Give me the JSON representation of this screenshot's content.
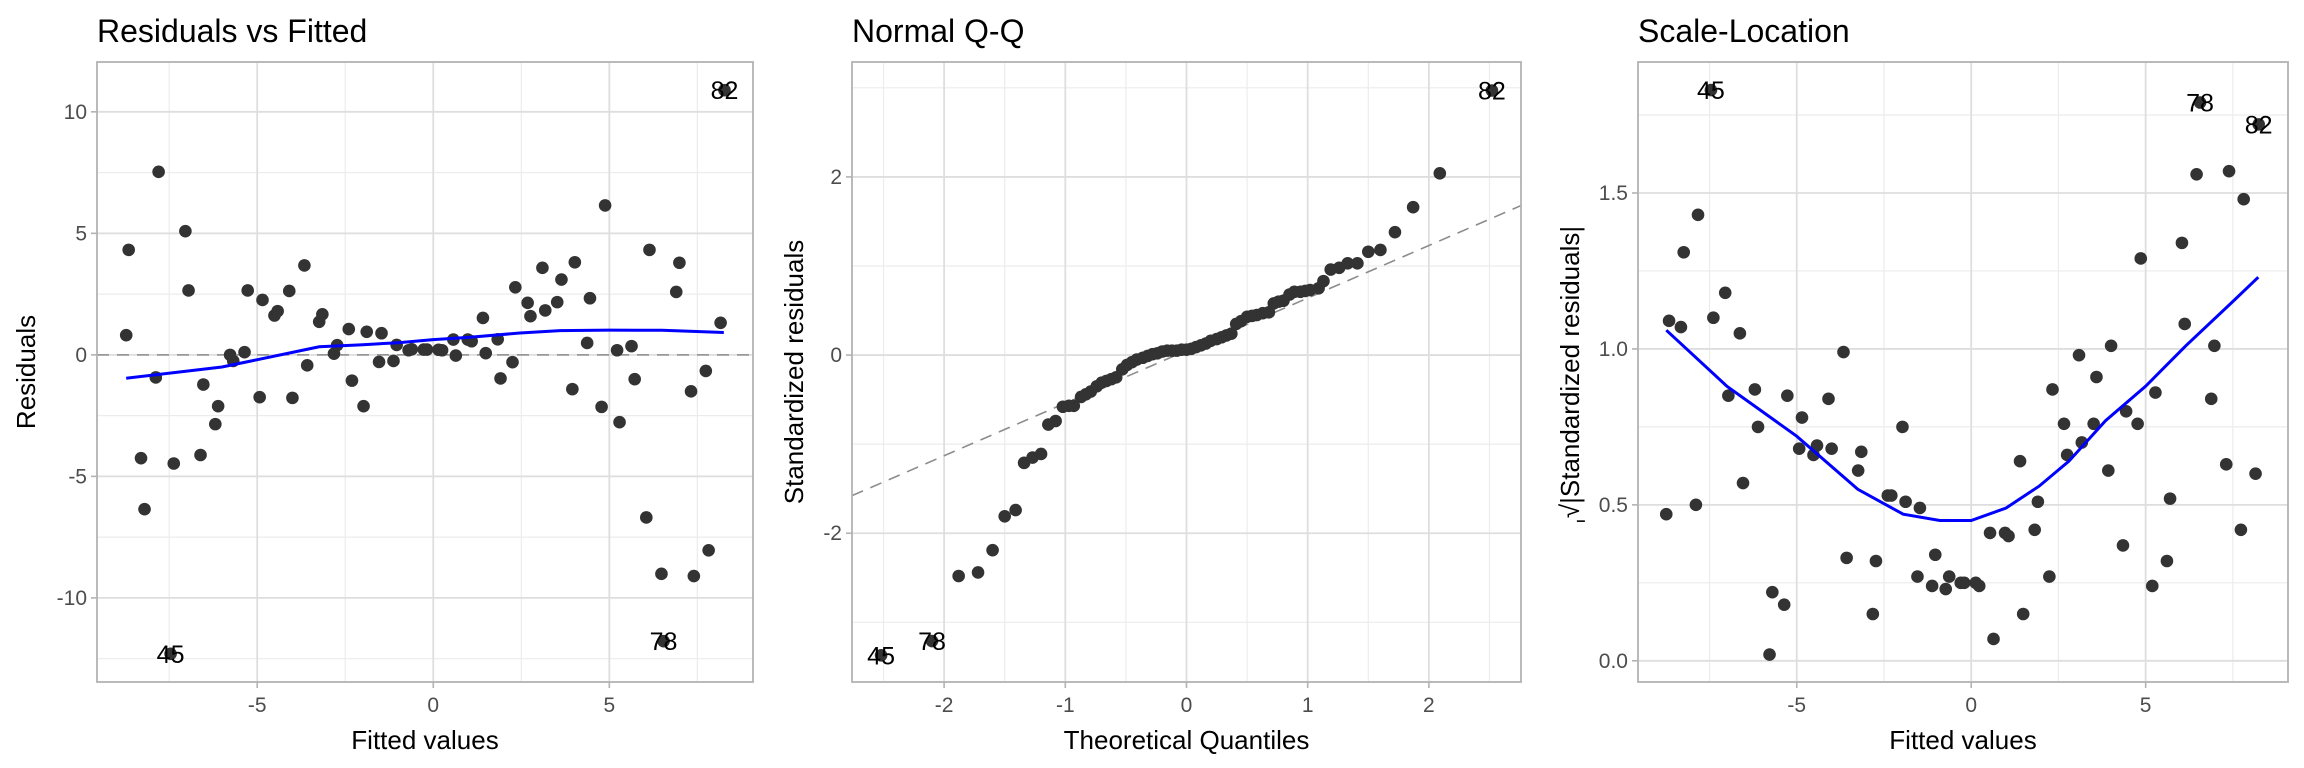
{
  "colors": {
    "point": "#333333",
    "smooth": "#0000ff",
    "reference": "#8c8c8c",
    "grid_major": "#dedede",
    "grid_minor": "#ececec",
    "border": "#b3b3b3"
  },
  "chart_data": [
    {
      "type": "scatter",
      "title": "Residuals vs Fitted",
      "xlabel": "Fitted values",
      "ylabel": "Residuals",
      "xlim": [
        -9.55,
        9.08
      ],
      "ylim": [
        -13.46,
        12.05
      ],
      "xticks": [
        -5,
        0,
        5
      ],
      "yticks": [
        -10,
        -5,
        0,
        5,
        10
      ],
      "xtick_labels": [
        "-5",
        "0",
        "5"
      ],
      "ytick_labels": [
        "-10",
        "-5",
        "0",
        "5",
        "10"
      ],
      "grid": true,
      "hline": 0,
      "points": [
        [
          -8.72,
          0.81
        ],
        [
          -8.65,
          4.32
        ],
        [
          -7.8,
          7.53
        ],
        [
          -7.04,
          5.09
        ],
        [
          -6.95,
          2.65
        ],
        [
          -7.88,
          -0.93
        ],
        [
          -6.53,
          -1.22
        ],
        [
          -6.11,
          -2.11
        ],
        [
          -6.19,
          -2.85
        ],
        [
          -8.3,
          -4.25
        ],
        [
          -7.37,
          -4.47
        ],
        [
          -6.61,
          -4.12
        ],
        [
          -8.2,
          -6.35
        ],
        [
          -5.77,
          0.0
        ],
        [
          -5.68,
          -0.25
        ],
        [
          -5.36,
          0.11
        ],
        [
          -5.27,
          2.65
        ],
        [
          -4.85,
          2.26
        ],
        [
          -4.93,
          -1.74
        ],
        [
          -4.51,
          1.62
        ],
        [
          -4.42,
          1.8
        ],
        [
          -4.09,
          2.63
        ],
        [
          -4.0,
          -1.77
        ],
        [
          -3.66,
          3.68
        ],
        [
          -3.58,
          -0.43
        ],
        [
          -3.24,
          1.36
        ],
        [
          -3.15,
          1.67
        ],
        [
          -2.82,
          0.05
        ],
        [
          -2.73,
          0.4
        ],
        [
          -2.4,
          1.06
        ],
        [
          -2.31,
          -1.06
        ],
        [
          -1.98,
          -2.11
        ],
        [
          -1.89,
          0.95
        ],
        [
          -1.54,
          -0.29
        ],
        [
          -1.47,
          0.89
        ],
        [
          -1.13,
          -0.25
        ],
        [
          -1.04,
          0.41
        ],
        [
          -0.7,
          0.19
        ],
        [
          -0.61,
          0.23
        ],
        [
          -0.27,
          0.22
        ],
        [
          -0.18,
          0.22
        ],
        [
          0.15,
          0.21
        ],
        [
          0.25,
          0.19
        ],
        [
          0.57,
          0.63
        ],
        [
          0.64,
          -0.03
        ],
        [
          0.98,
          0.63
        ],
        [
          1.09,
          0.56
        ],
        [
          1.41,
          1.52
        ],
        [
          1.49,
          0.07
        ],
        [
          1.83,
          0.64
        ],
        [
          1.91,
          -0.97
        ],
        [
          2.25,
          -0.3
        ],
        [
          2.33,
          2.78
        ],
        [
          2.68,
          2.14
        ],
        [
          2.76,
          1.59
        ],
        [
          3.1,
          3.58
        ],
        [
          3.18,
          1.83
        ],
        [
          3.52,
          2.17
        ],
        [
          3.64,
          3.1
        ],
        [
          3.95,
          -1.41
        ],
        [
          4.02,
          3.81
        ],
        [
          4.37,
          0.49
        ],
        [
          4.45,
          2.33
        ],
        [
          4.78,
          -2.14
        ],
        [
          4.88,
          6.15
        ],
        [
          5.22,
          0.19
        ],
        [
          5.29,
          -2.77
        ],
        [
          5.63,
          0.36
        ],
        [
          5.72,
          -1.0
        ],
        [
          6.05,
          -6.69
        ],
        [
          6.14,
          4.32
        ],
        [
          6.48,
          -9.01
        ],
        [
          6.9,
          2.59
        ],
        [
          6.99,
          3.79
        ],
        [
          7.32,
          -1.5
        ],
        [
          7.4,
          -9.1
        ],
        [
          7.74,
          -0.66
        ],
        [
          7.82,
          -8.04
        ],
        [
          8.16,
          1.32
        ],
        [
          -7.46,
          -12.3
        ],
        [
          6.54,
          -11.78
        ],
        [
          8.27,
          10.89
        ]
      ],
      "labeled_points": [
        {
          "label": "45",
          "x": -7.46,
          "y": -12.3
        },
        {
          "label": "78",
          "x": 6.54,
          "y": -11.78
        },
        {
          "label": "82",
          "x": 8.27,
          "y": 10.89
        }
      ],
      "smooth": [
        [
          -8.72,
          -0.96
        ],
        [
          -6,
          -0.5
        ],
        [
          -4,
          0.1
        ],
        [
          -3.24,
          0.33
        ],
        [
          -2,
          0.42
        ],
        [
          -1,
          0.5
        ],
        [
          0,
          0.63
        ],
        [
          1,
          0.72
        ],
        [
          2.46,
          0.9
        ],
        [
          3.6,
          1.0
        ],
        [
          5,
          1.02
        ],
        [
          6.5,
          1.01
        ],
        [
          8.25,
          0.92
        ]
      ]
    },
    {
      "type": "scatter",
      "title": "Normal Q-Q",
      "xlabel": "Theoretical Quantiles",
      "ylabel": "Standardized residuals",
      "xlim": [
        -2.76,
        2.76
      ],
      "ylim": [
        -3.67,
        3.29
      ],
      "xticks": [
        -2,
        -1,
        0,
        1,
        2
      ],
      "yticks": [
        -2,
        0,
        2
      ],
      "xtick_labels": [
        "-2",
        "-1",
        "0",
        "1",
        "2"
      ],
      "ytick_labels": [
        "-2",
        "0",
        "2"
      ],
      "grid": true,
      "reference_line": {
        "intercept": 0.05,
        "slope": 0.59
      },
      "points": [
        [
          -2.52,
          -3.37
        ],
        [
          -2.1,
          -3.21
        ],
        [
          -1.88,
          -2.48
        ],
        [
          -1.72,
          -2.44
        ],
        [
          -1.6,
          -2.19
        ],
        [
          -1.5,
          -1.81
        ],
        [
          -1.41,
          -1.74
        ],
        [
          -1.34,
          -1.21
        ],
        [
          -1.27,
          -1.15
        ],
        [
          -1.2,
          -1.11
        ],
        [
          -1.14,
          -0.78
        ],
        [
          -1.08,
          -0.74
        ],
        [
          -1.02,
          -0.58
        ],
        [
          -0.97,
          -0.57
        ],
        [
          -0.93,
          -0.57
        ],
        [
          -0.87,
          -0.47
        ],
        [
          -0.83,
          -0.44
        ],
        [
          -0.79,
          -0.41
        ],
        [
          -0.74,
          -0.35
        ],
        [
          -0.7,
          -0.31
        ],
        [
          -0.66,
          -0.29
        ],
        [
          -0.62,
          -0.27
        ],
        [
          -0.58,
          -0.25
        ],
        [
          -0.53,
          -0.16
        ],
        [
          -0.49,
          -0.11
        ],
        [
          -0.45,
          -0.08
        ],
        [
          -0.41,
          -0.05
        ],
        [
          -0.36,
          -0.03
        ],
        [
          -0.32,
          -0.01
        ],
        [
          -0.28,
          0.01
        ],
        [
          -0.24,
          0.02
        ],
        [
          -0.2,
          0.04
        ],
        [
          -0.16,
          0.05
        ],
        [
          -0.12,
          0.05
        ],
        [
          -0.08,
          0.05
        ],
        [
          -0.04,
          0.06
        ],
        [
          0.0,
          0.06
        ],
        [
          0.04,
          0.07
        ],
        [
          0.08,
          0.09
        ],
        [
          0.12,
          0.11
        ],
        [
          0.16,
          0.13
        ],
        [
          0.2,
          0.16
        ],
        [
          0.25,
          0.18
        ],
        [
          0.29,
          0.2
        ],
        [
          0.33,
          0.22
        ],
        [
          0.37,
          0.24
        ],
        [
          0.41,
          0.35
        ],
        [
          0.45,
          0.38
        ],
        [
          0.5,
          0.43
        ],
        [
          0.54,
          0.44
        ],
        [
          0.58,
          0.45
        ],
        [
          0.63,
          0.47
        ],
        [
          0.68,
          0.48
        ],
        [
          0.72,
          0.58
        ],
        [
          0.76,
          0.6
        ],
        [
          0.8,
          0.61
        ],
        [
          0.85,
          0.68
        ],
        [
          0.89,
          0.71
        ],
        [
          0.94,
          0.71
        ],
        [
          0.98,
          0.72
        ],
        [
          1.02,
          0.73
        ],
        [
          1.09,
          0.75
        ],
        [
          1.13,
          0.83
        ],
        [
          1.19,
          0.96
        ],
        [
          1.26,
          0.98
        ],
        [
          1.33,
          1.03
        ],
        [
          1.41,
          1.03
        ],
        [
          1.5,
          1.16
        ],
        [
          1.6,
          1.18
        ],
        [
          1.72,
          1.38
        ],
        [
          1.87,
          1.66
        ],
        [
          2.09,
          2.04
        ],
        [
          2.52,
          2.97
        ]
      ],
      "labeled_points": [
        {
          "label": "45",
          "x": -2.52,
          "y": -3.37
        },
        {
          "label": "78",
          "x": -2.1,
          "y": -3.21
        },
        {
          "label": "82",
          "x": 2.52,
          "y": 2.97
        }
      ]
    },
    {
      "type": "scatter",
      "title": "Scale-Location",
      "xlabel": "Fitted values",
      "ylabel": "√|Standardized residuals|",
      "xlim": [
        -9.55,
        9.08
      ],
      "ylim": [
        -0.068,
        1.92
      ],
      "xticks": [
        -5,
        0,
        5
      ],
      "yticks": [
        0,
        0.5,
        1,
        1.5
      ],
      "xtick_labels": [
        "-5",
        "0",
        "5"
      ],
      "ytick_labels": [
        "0.0",
        "0.5",
        "1.0",
        "1.5"
      ],
      "grid": true,
      "points": [
        [
          -7.46,
          1.83
        ],
        [
          -7.83,
          1.43
        ],
        [
          -8.24,
          1.31
        ],
        [
          -7.05,
          1.18
        ],
        [
          -8.66,
          1.09
        ],
        [
          -8.32,
          1.07
        ],
        [
          -7.39,
          1.1
        ],
        [
          -6.63,
          1.05
        ],
        [
          -6.96,
          0.85
        ],
        [
          -6.2,
          0.87
        ],
        [
          -6.11,
          0.75
        ],
        [
          -6.54,
          0.57
        ],
        [
          -8.74,
          0.47
        ],
        [
          -7.89,
          0.5
        ],
        [
          -5.27,
          0.85
        ],
        [
          -4.85,
          0.78
        ],
        [
          -4.93,
          0.68
        ],
        [
          -4.42,
          0.69
        ],
        [
          -4.52,
          0.66
        ],
        [
          -4.09,
          0.84
        ],
        [
          -4.0,
          0.68
        ],
        [
          -3.66,
          0.99
        ],
        [
          -3.15,
          0.67
        ],
        [
          -3.24,
          0.61
        ],
        [
          -3.57,
          0.33
        ],
        [
          -2.73,
          0.32
        ],
        [
          -2.82,
          0.15
        ],
        [
          -5.7,
          0.22
        ],
        [
          -5.36,
          0.18
        ],
        [
          -5.78,
          0.02
        ],
        [
          -1.97,
          0.75
        ],
        [
          -2.39,
          0.53
        ],
        [
          -2.29,
          0.53
        ],
        [
          -1.88,
          0.51
        ],
        [
          -1.47,
          0.49
        ],
        [
          -1.03,
          0.34
        ],
        [
          -1.54,
          0.27
        ],
        [
          -1.12,
          0.24
        ],
        [
          -0.63,
          0.27
        ],
        [
          -0.73,
          0.23
        ],
        [
          -0.3,
          0.25
        ],
        [
          -0.2,
          0.25
        ],
        [
          0.13,
          0.25
        ],
        [
          0.23,
          0.24
        ],
        [
          0.54,
          0.41
        ],
        [
          0.64,
          0.07
        ],
        [
          0.97,
          0.41
        ],
        [
          1.07,
          0.4
        ],
        [
          1.4,
          0.64
        ],
        [
          1.49,
          0.15
        ],
        [
          1.82,
          0.42
        ],
        [
          1.91,
          0.51
        ],
        [
          2.24,
          0.27
        ],
        [
          2.33,
          0.87
        ],
        [
          2.66,
          0.76
        ],
        [
          2.75,
          0.66
        ],
        [
          3.09,
          0.98
        ],
        [
          3.17,
          0.7
        ],
        [
          3.51,
          0.76
        ],
        [
          3.59,
          0.91
        ],
        [
          3.93,
          0.61
        ],
        [
          4.01,
          1.01
        ],
        [
          4.35,
          0.37
        ],
        [
          4.44,
          0.8
        ],
        [
          4.77,
          0.76
        ],
        [
          4.86,
          1.29
        ],
        [
          5.19,
          0.24
        ],
        [
          5.28,
          0.86
        ],
        [
          5.61,
          0.32
        ],
        [
          5.7,
          0.52
        ],
        [
          6.04,
          1.34
        ],
        [
          6.12,
          1.08
        ],
        [
          6.46,
          1.56
        ],
        [
          6.56,
          1.79
        ],
        [
          6.88,
          0.84
        ],
        [
          6.97,
          1.01
        ],
        [
          7.31,
          0.63
        ],
        [
          7.39,
          1.57
        ],
        [
          7.73,
          0.42
        ],
        [
          7.81,
          1.48
        ],
        [
          8.15,
          0.6
        ],
        [
          8.24,
          1.72
        ]
      ],
      "labeled_points": [
        {
          "label": "45",
          "x": -7.46,
          "y": 1.83
        },
        {
          "label": "78",
          "x": 6.56,
          "y": 1.79
        },
        {
          "label": "82",
          "x": 8.24,
          "y": 1.72
        }
      ],
      "smooth": [
        [
          -8.74,
          1.06
        ],
        [
          -7,
          0.88
        ],
        [
          -5,
          0.72
        ],
        [
          -3.25,
          0.55
        ],
        [
          -1.95,
          0.47
        ],
        [
          -0.9,
          0.45
        ],
        [
          0,
          0.45
        ],
        [
          1.0,
          0.49
        ],
        [
          1.95,
          0.56
        ],
        [
          2.8,
          0.64
        ],
        [
          3.85,
          0.77
        ],
        [
          5,
          0.88
        ],
        [
          6.15,
          1.01
        ],
        [
          7.48,
          1.15
        ],
        [
          8.23,
          1.23
        ]
      ]
    }
  ]
}
